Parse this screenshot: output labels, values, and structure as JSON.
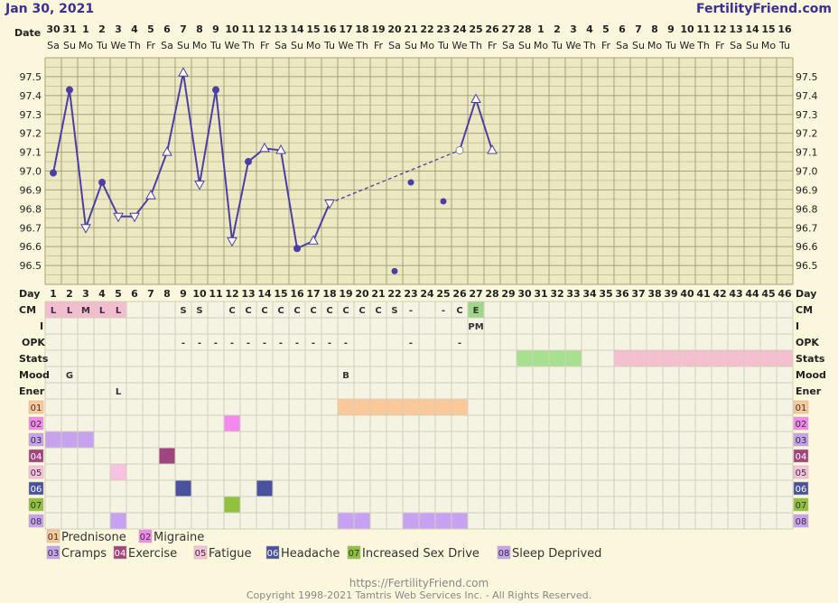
{
  "header": {
    "date_title": "Jan 30, 2021",
    "site_title": "FertilityFriend.com"
  },
  "labels": {
    "date": "Date",
    "day": "Day",
    "rows": [
      "CM",
      "I",
      "OPK",
      "Stats",
      "Mood",
      "Ener"
    ]
  },
  "colors": {
    "line": "#4b3fa7",
    "grid": "#a5a37a",
    "grid_bg": "#ece8c2",
    "table_bg": "#f5f3e4",
    "cm_pink": "#f4bcd0",
    "peak_green": "#9ed68a",
    "stats_green": "#a7e08f",
    "stats_pink": "#f5bfd2"
  },
  "calendar": {
    "dates": [
      "30",
      "31",
      "1",
      "2",
      "3",
      "4",
      "5",
      "6",
      "7",
      "8",
      "9",
      "10",
      "11",
      "12",
      "13",
      "14",
      "15",
      "16",
      "17",
      "18",
      "19",
      "20",
      "21",
      "22",
      "23",
      "24",
      "25",
      "26",
      "27",
      "28",
      "1",
      "2",
      "3",
      "4",
      "5",
      "6",
      "7",
      "8",
      "9",
      "10",
      "11",
      "12",
      "13",
      "14",
      "15",
      "16"
    ],
    "weekdays": [
      "Sa",
      "Su",
      "Mo",
      "Tu",
      "We",
      "Th",
      "Fr",
      "Sa",
      "Su",
      "Mo",
      "Tu",
      "We",
      "Th",
      "Fr",
      "Sa",
      "Su",
      "Mo",
      "Tu",
      "We",
      "Th",
      "Fr",
      "Sa",
      "Su",
      "Mo",
      "Tu",
      "We",
      "Th",
      "Fr",
      "Sa",
      "Su",
      "Mo",
      "Tu",
      "We",
      "Th",
      "Fr",
      "Sa",
      "Su",
      "Mo",
      "Tu",
      "We",
      "Th",
      "Fr",
      "Sa",
      "Su",
      "Mo",
      "Tu"
    ],
    "days": [
      "1",
      "2",
      "3",
      "4",
      "5",
      "6",
      "7",
      "8",
      "9",
      "10",
      "11",
      "12",
      "13",
      "14",
      "15",
      "16",
      "17",
      "18",
      "19",
      "20",
      "21",
      "22",
      "23",
      "24",
      "25",
      "26",
      "27",
      "28",
      "29",
      "30",
      "31",
      "32",
      "33",
      "34",
      "35",
      "36",
      "37",
      "38",
      "39",
      "40",
      "41",
      "42",
      "43",
      "44",
      "45",
      "46"
    ]
  },
  "chart_data": {
    "type": "line",
    "title": "",
    "xlabel": "Day",
    "ylabel": "",
    "ylim": [
      96.4,
      97.6
    ],
    "yticks": [
      "96.5",
      "96.6",
      "96.7",
      "96.8",
      "96.9",
      "97.0",
      "97.1",
      "97.2",
      "97.3",
      "97.4",
      "97.5"
    ],
    "series": [
      {
        "temps": [
          {
            "day": 1,
            "temp": 96.99,
            "marker": "dot"
          },
          {
            "day": 2,
            "temp": 97.43,
            "marker": "dot"
          },
          {
            "day": 3,
            "temp": 96.7,
            "marker": "down"
          },
          {
            "day": 4,
            "temp": 96.94,
            "marker": "dot"
          },
          {
            "day": 5,
            "temp": 96.76,
            "marker": "down"
          },
          {
            "day": 6,
            "temp": 96.76,
            "marker": "down"
          },
          {
            "day": 7,
            "temp": 96.87,
            "marker": "up"
          },
          {
            "day": 8,
            "temp": 97.1,
            "marker": "up"
          },
          {
            "day": 9,
            "temp": 97.52,
            "marker": "up"
          },
          {
            "day": 10,
            "temp": 96.93,
            "marker": "down"
          },
          {
            "day": 11,
            "temp": 97.43,
            "marker": "dot"
          },
          {
            "day": 12,
            "temp": 96.63,
            "marker": "down"
          },
          {
            "day": 13,
            "temp": 97.05,
            "marker": "dot"
          },
          {
            "day": 14,
            "temp": 97.12,
            "marker": "up"
          },
          {
            "day": 15,
            "temp": 97.11,
            "marker": "up"
          },
          {
            "day": 16,
            "temp": 96.59,
            "marker": "dot"
          },
          {
            "day": 17,
            "temp": 96.63,
            "marker": "up"
          },
          {
            "day": 18,
            "temp": 96.83,
            "marker": "down"
          },
          {
            "day": 26,
            "temp": 97.11,
            "marker": "open"
          },
          {
            "day": 27,
            "temp": 97.38,
            "marker": "up"
          },
          {
            "day": 28,
            "temp": 97.11,
            "marker": "up"
          }
        ],
        "solid_segments": [
          [
            1,
            18
          ],
          [
            26,
            28
          ]
        ],
        "dashed_segments": [
          [
            18,
            26
          ]
        ]
      }
    ],
    "discarded_points": [
      {
        "day": 22,
        "temp": 96.47
      },
      {
        "day": 23,
        "temp": 96.94
      },
      {
        "day": 25,
        "temp": 96.84
      }
    ]
  },
  "rows": {
    "cm": [
      {
        "day": 1,
        "text": "L",
        "bg": "pink"
      },
      {
        "day": 2,
        "text": "L",
        "bg": "pink"
      },
      {
        "day": 3,
        "text": "M",
        "bg": "pink"
      },
      {
        "day": 4,
        "text": "L",
        "bg": "pink"
      },
      {
        "day": 5,
        "text": "L",
        "bg": "pink"
      },
      {
        "day": 9,
        "text": "S"
      },
      {
        "day": 10,
        "text": "S"
      },
      {
        "day": 12,
        "text": "C"
      },
      {
        "day": 13,
        "text": "C"
      },
      {
        "day": 14,
        "text": "C"
      },
      {
        "day": 15,
        "text": "C"
      },
      {
        "day": 16,
        "text": "C"
      },
      {
        "day": 17,
        "text": "C"
      },
      {
        "day": 18,
        "text": "C"
      },
      {
        "day": 19,
        "text": "C"
      },
      {
        "day": 20,
        "text": "C"
      },
      {
        "day": 21,
        "text": "C"
      },
      {
        "day": 22,
        "text": "S"
      },
      {
        "day": 23,
        "text": "-"
      },
      {
        "day": 25,
        "text": "-"
      },
      {
        "day": 26,
        "text": "C"
      },
      {
        "day": 27,
        "text": "E",
        "bg": "green"
      }
    ],
    "intercourse": [
      {
        "day": 27,
        "text": "PM"
      }
    ],
    "opk": [
      {
        "day": 9,
        "text": "-"
      },
      {
        "day": 10,
        "text": "-"
      },
      {
        "day": 11,
        "text": "-"
      },
      {
        "day": 12,
        "text": "-"
      },
      {
        "day": 13,
        "text": "-"
      },
      {
        "day": 14,
        "text": "-"
      },
      {
        "day": 15,
        "text": "-"
      },
      {
        "day": 16,
        "text": "-"
      },
      {
        "day": 17,
        "text": "-"
      },
      {
        "day": 18,
        "text": "-"
      },
      {
        "day": 19,
        "text": "-"
      },
      {
        "day": 23,
        "text": "-"
      },
      {
        "day": 26,
        "text": "-"
      }
    ],
    "stats": [
      {
        "from": 30,
        "to": 33,
        "bg": "green"
      },
      {
        "from": 36,
        "to": 46,
        "bg": "pink"
      }
    ],
    "mood": [
      {
        "day": 2,
        "text": "G"
      },
      {
        "day": 19,
        "text": "B"
      }
    ],
    "energy": [
      {
        "day": 5,
        "text": "L"
      }
    ]
  },
  "symptoms": [
    {
      "code": "01",
      "name": "Prednisone",
      "color": "#fbc89a",
      "days": [
        19,
        20,
        21,
        22,
        23,
        24,
        25,
        26
      ]
    },
    {
      "code": "02",
      "name": "Migraine",
      "color": "#f389ee",
      "days": [
        12
      ]
    },
    {
      "code": "03",
      "name": "Cramps",
      "color": "#c6a2ef",
      "days": [
        1,
        2,
        3
      ]
    },
    {
      "code": "04",
      "name": "Exercise",
      "color": "#a0457f",
      "days": [
        8
      ]
    },
    {
      "code": "05",
      "name": "Fatigue",
      "color": "#f6c2df",
      "days": [
        5
      ]
    },
    {
      "code": "06",
      "name": "Headache",
      "color": "#48519b",
      "days": [
        9,
        14
      ]
    },
    {
      "code": "07",
      "name": "Increased Sex Drive",
      "color": "#90c23f",
      "days": [
        12
      ]
    },
    {
      "code": "08",
      "name": "Sleep Deprived",
      "color": "#c8a2f2",
      "days": [
        5,
        19,
        20,
        23,
        24,
        25,
        26
      ]
    }
  ],
  "footer": {
    "url": "https://FertilityFriend.com",
    "copyright": "Copyright 1998-2021 Tamtris Web Services Inc. - All Rights Reserved."
  }
}
